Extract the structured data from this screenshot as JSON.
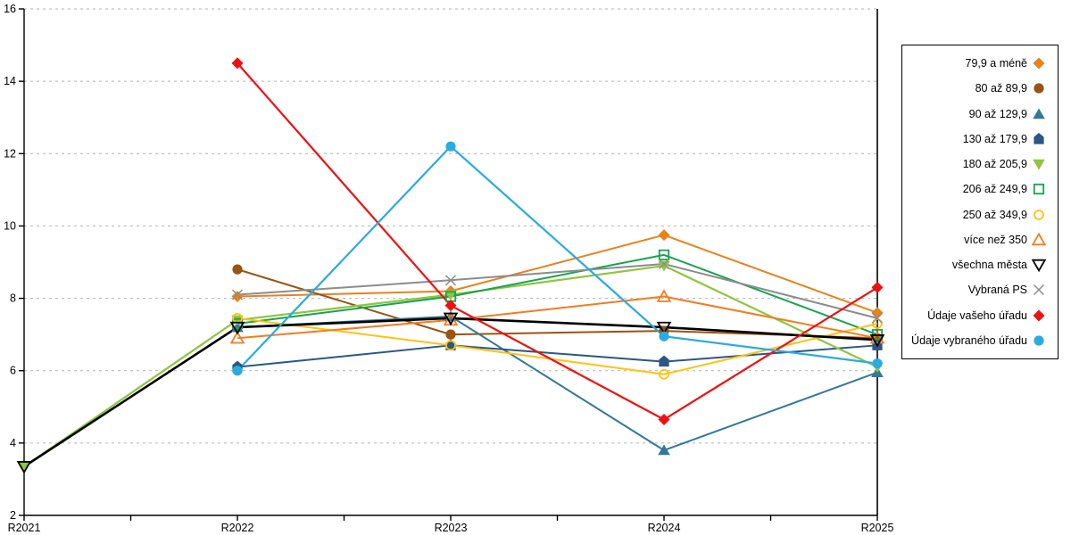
{
  "chart_data": {
    "type": "line",
    "title": "",
    "xlabel": "",
    "ylabel": "",
    "categories": [
      "R2021",
      "R2022",
      "R2023",
      "R2024",
      "R2025"
    ],
    "y_ticks": [
      2,
      4,
      6,
      8,
      10,
      12,
      14,
      16
    ],
    "ylim": [
      2,
      16
    ],
    "grid": "horizontal-dashed",
    "legend_position": "right-box",
    "axis_color": "#000000",
    "gridline_color": "#b3b3b3",
    "series": [
      {
        "name": "79,9 a méně",
        "marker": "diamond",
        "fill": "solid",
        "color": "#e8821a",
        "lw": 2,
        "values": [
          null,
          8.05,
          8.2,
          9.75,
          7.6
        ]
      },
      {
        "name": "80 až 89,9",
        "marker": "circle",
        "fill": "solid",
        "color": "#9c5310",
        "lw": 2,
        "values": [
          null,
          8.8,
          7.0,
          7.1,
          6.9
        ]
      },
      {
        "name": "90 až 129,9",
        "marker": "triangle-up",
        "fill": "solid",
        "color": "#31799b",
        "lw": 2,
        "values": [
          null,
          7.2,
          7.5,
          3.8,
          5.95
        ]
      },
      {
        "name": "130 až 179,9",
        "marker": "pentagon",
        "fill": "solid",
        "color": "#2a5783",
        "lw": 2,
        "values": [
          null,
          6.1,
          6.7,
          6.25,
          6.7
        ]
      },
      {
        "name": "180 až 205,9",
        "marker": "triangle-down",
        "fill": "solid",
        "color": "#8dc63f",
        "lw": 2.2,
        "values": [
          3.35,
          7.4,
          8.1,
          8.9,
          6.1
        ]
      },
      {
        "name": "206 až 249,9",
        "marker": "square",
        "fill": "open",
        "color": "#18a352",
        "lw": 2,
        "values": [
          null,
          7.3,
          8.05,
          9.2,
          7.0
        ]
      },
      {
        "name": "250 až 349,9",
        "marker": "circle",
        "fill": "open",
        "color": "#ffc20e",
        "lw": 2,
        "values": [
          null,
          7.45,
          6.7,
          5.9,
          7.3
        ]
      },
      {
        "name": "více než 350",
        "marker": "triangle-up",
        "fill": "open",
        "color": "#f47b20",
        "lw": 2,
        "values": [
          null,
          6.9,
          7.4,
          8.05,
          6.9
        ]
      },
      {
        "name": "všechna města",
        "marker": "triangle-down",
        "fill": "open",
        "color": "#000000",
        "lw": 2.6,
        "values": [
          3.35,
          7.2,
          7.45,
          7.2,
          6.85
        ]
      },
      {
        "name": "Vybraná PS",
        "marker": "x",
        "fill": "open",
        "color": "#8c8c8c",
        "lw": 2,
        "values": [
          null,
          8.1,
          8.5,
          8.95,
          7.45
        ]
      },
      {
        "name": "Údaje vašeho úřadu",
        "marker": "diamond",
        "fill": "solid",
        "color": "#ee1111",
        "lw": 2.2,
        "values": [
          null,
          14.5,
          7.8,
          4.65,
          8.3
        ]
      },
      {
        "name": "Údaje vybraného úřadu",
        "marker": "circle",
        "fill": "solid",
        "color": "#29abe2",
        "lw": 2.2,
        "values": [
          null,
          6.0,
          12.2,
          6.95,
          6.2
        ]
      }
    ]
  }
}
